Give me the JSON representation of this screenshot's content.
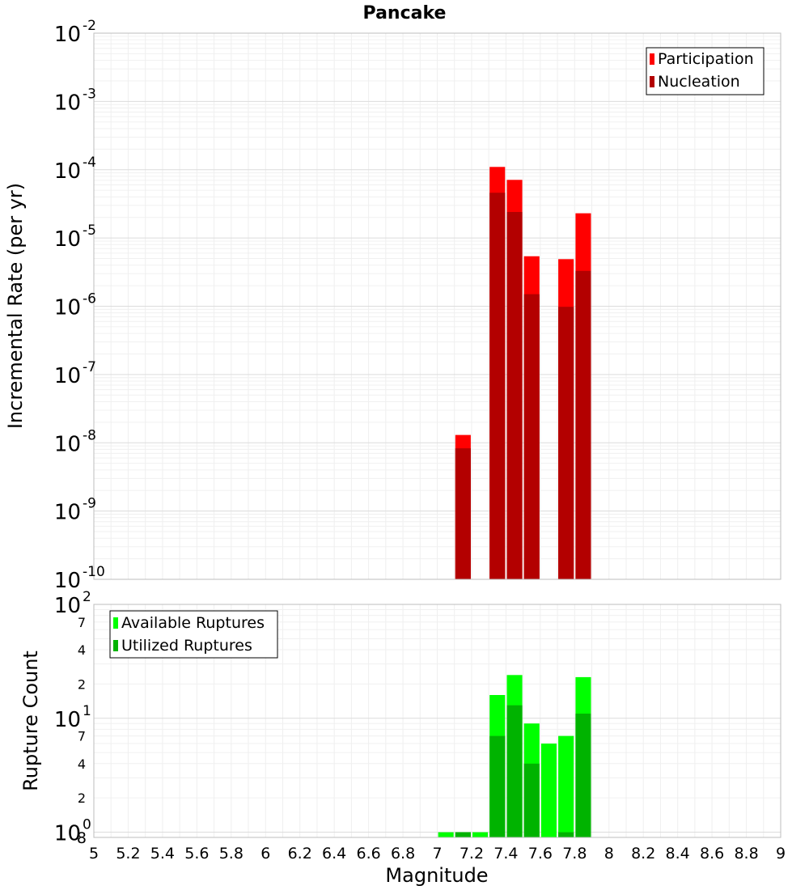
{
  "chart_data": [
    {
      "type": "bar",
      "title": "Pancake",
      "xlabel": "Magnitude",
      "ylabel": "Incremental Rate (per yr)",
      "yscale": "log",
      "ylim": [
        1e-10,
        0.01
      ],
      "xlim": [
        5,
        9
      ],
      "grid": true,
      "legend_position": "top-right",
      "x_ticks": [
        "5",
        "5.2",
        "5.4",
        "5.6",
        "5.8",
        "6",
        "6.2",
        "6.4",
        "6.6",
        "6.8",
        "7",
        "7.2",
        "7.4",
        "7.6",
        "7.8",
        "8",
        "8.2",
        "8.4",
        "8.6",
        "8.8",
        "9"
      ],
      "y_tick_exponents": [
        "-10",
        "-9",
        "-8",
        "-7",
        "-6",
        "-5",
        "-4",
        "-3",
        "-2"
      ],
      "y_tick_base": "10",
      "series": [
        {
          "name": "Participation",
          "color": "#ff0000",
          "x": [
            7.15,
            7.35,
            7.45,
            7.55,
            7.75,
            7.85
          ],
          "values": [
            1.3e-08,
            0.00011,
            7.1e-05,
            5.4e-06,
            4.9e-06,
            2.3e-05
          ]
        },
        {
          "name": "Nucleation",
          "color": "#b30000",
          "x": [
            7.15,
            7.35,
            7.45,
            7.55,
            7.75,
            7.85
          ],
          "values": [
            8.3e-09,
            4.6e-05,
            2.4e-05,
            1.5e-06,
            9.8e-07,
            3.3e-06
          ]
        }
      ]
    },
    {
      "type": "bar",
      "xlabel": "Magnitude",
      "ylabel": "Rupture Count",
      "yscale": "log",
      "ylim": [
        0.9,
        100
      ],
      "xlim": [
        5,
        9
      ],
      "grid": true,
      "legend_position": "top-left",
      "y_major_ticks": [
        {
          "base": "10",
          "exp": "0"
        },
        {
          "base": "10",
          "exp": "1"
        },
        {
          "base": "10",
          "exp": "2"
        }
      ],
      "y_minor_labels": [
        "2",
        "4",
        "7",
        "2",
        "4",
        "7"
      ],
      "y_minor_values": [
        2,
        4,
        7,
        20,
        40,
        70
      ],
      "y_extra_label": "8",
      "series": [
        {
          "name": "Available Ruptures",
          "color": "#00ff00",
          "x": [
            7.05,
            7.15,
            7.25,
            7.35,
            7.45,
            7.55,
            7.65,
            7.75,
            7.85
          ],
          "values": [
            1,
            1,
            1,
            16,
            24,
            9,
            6,
            7,
            23
          ]
        },
        {
          "name": "Utilized Ruptures",
          "color": "#00b300",
          "x": [
            7.05,
            7.15,
            7.25,
            7.35,
            7.45,
            7.55,
            7.65,
            7.75,
            7.85
          ],
          "values": [
            0,
            1,
            0,
            7,
            13,
            4,
            0,
            1,
            11
          ]
        }
      ]
    }
  ]
}
